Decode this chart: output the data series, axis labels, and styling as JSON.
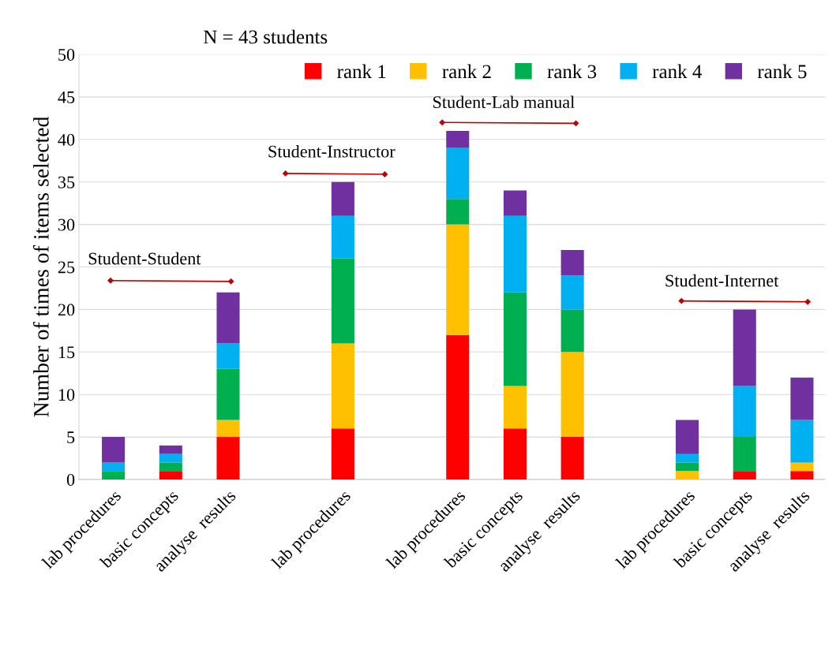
{
  "chart_data": {
    "type": "bar",
    "stacked": true,
    "title": "N = 43 students",
    "ylabel": "Number of times of items selected",
    "categories": [
      "lab procedures",
      "basic concepts",
      "analyse  results",
      null,
      "lab procedures",
      null,
      "lab procedures",
      "basic concepts",
      "analyse  results",
      null,
      "lab procedures",
      "basic concepts",
      "analyse  results"
    ],
    "series": [
      {
        "name": "rank 1",
        "color": "#ff0000",
        "values": [
          0,
          1,
          5,
          null,
          6,
          null,
          17,
          6,
          5,
          null,
          0,
          1,
          1
        ]
      },
      {
        "name": "rank 2",
        "color": "#ffc000",
        "values": [
          0,
          0,
          2,
          null,
          10,
          null,
          13,
          5,
          10,
          null,
          1,
          0,
          1
        ]
      },
      {
        "name": "rank 3",
        "color": "#00b050",
        "values": [
          1,
          1,
          6,
          null,
          10,
          null,
          3,
          11,
          5,
          null,
          1,
          4,
          0
        ]
      },
      {
        "name": "rank 4",
        "color": "#00b0f0",
        "values": [
          1,
          1,
          3,
          null,
          5,
          null,
          6,
          9,
          4,
          null,
          1,
          6,
          5
        ]
      },
      {
        "name": "rank 5",
        "color": "#7030a0",
        "values": [
          3,
          1,
          6,
          null,
          4,
          null,
          2,
          3,
          3,
          null,
          4,
          9,
          5
        ]
      }
    ],
    "ylim": [
      0,
      50
    ],
    "yticks": [
      0,
      5,
      10,
      15,
      20,
      25,
      30,
      35,
      40,
      45,
      50
    ],
    "grid": "y",
    "legend": "top right",
    "annotations": [
      "Student-Student",
      "Student-Instructor",
      "Student-Lab manual",
      "Student-Internet"
    ]
  }
}
